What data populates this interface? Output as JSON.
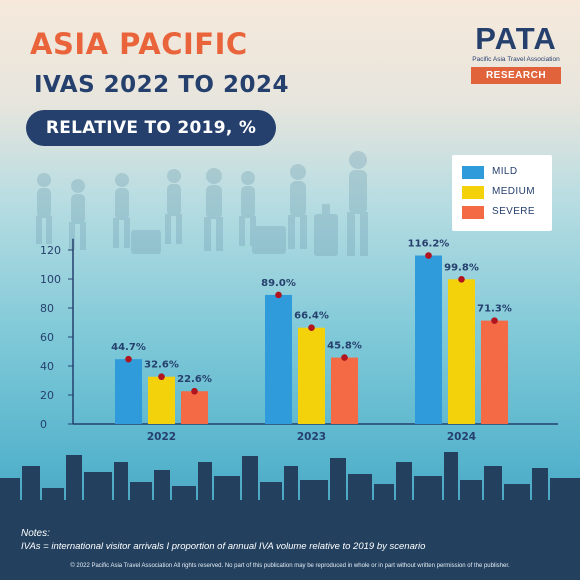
{
  "header": {
    "title_line1": "ASIA PACIFIC",
    "title_line2": "IVAS 2022 TO 2024",
    "subtitle": "RELATIVE TO 2019, %"
  },
  "logo": {
    "wordmark": "PATA",
    "subtext": "Pacific Asia Travel Association",
    "tag": "RESEARCH"
  },
  "colors": {
    "title_accent": "#e9643a",
    "navy": "#26406e",
    "mild": "#2f9bdb",
    "medium": "#f4d20b",
    "severe": "#f46a45",
    "marker": "#b1141e"
  },
  "chart_data": {
    "type": "bar",
    "categories": [
      "2022",
      "2023",
      "2024"
    ],
    "series": [
      {
        "name": "MILD",
        "values": [
          44.7,
          89.0,
          116.2
        ],
        "labels": [
          "44.7%",
          "89.0%",
          "116.2%"
        ],
        "color": "#2f9bdb"
      },
      {
        "name": "MEDIUM",
        "values": [
          32.6,
          66.4,
          99.8
        ],
        "labels": [
          "32.6%",
          "66.4%",
          "99.8%"
        ],
        "color": "#f4d20b"
      },
      {
        "name": "SEVERE",
        "values": [
          22.6,
          45.8,
          71.3
        ],
        "labels": [
          "22.6%",
          "45.8%",
          "71.3%"
        ],
        "color": "#f46a45"
      }
    ],
    "yticks": [
      "0",
      "20",
      "40",
      "60",
      "80",
      "100",
      "120"
    ],
    "ylim": [
      0,
      125
    ],
    "grid": false,
    "legend": "top-right"
  },
  "notes": {
    "title": "Notes:",
    "body": "IVAs = international visitor arrivals I proportion of annual IVA volume relative to 2019 by scenario"
  },
  "footer": {
    "copyright": "© 2022 Pacific Asia Travel Association All rights reserved. No part of this publication may be reproduced in whole or in part without written permission of the publisher."
  }
}
